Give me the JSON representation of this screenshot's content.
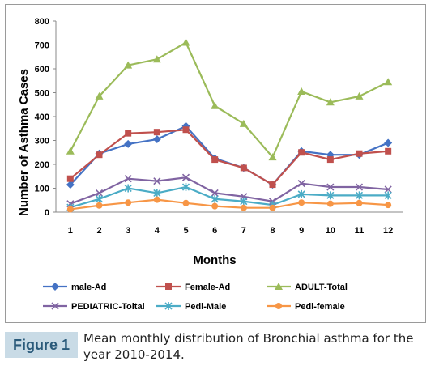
{
  "chart_data": {
    "type": "line",
    "title": "",
    "xlabel": "Months",
    "ylabel": "Number of Asthma Cases",
    "ylim": [
      0,
      800
    ],
    "yticks": [
      0,
      100,
      200,
      300,
      400,
      500,
      600,
      700,
      800
    ],
    "categories": [
      "1",
      "2",
      "3",
      "4",
      "5",
      "6",
      "7",
      "8",
      "9",
      "10",
      "11",
      "12"
    ],
    "grid": false,
    "legend": "bottom",
    "series": [
      {
        "name": "male-Ad",
        "color": "#4472c4",
        "marker": "diamond",
        "values": [
          115,
          245,
          285,
          305,
          360,
          225,
          185,
          115,
          255,
          240,
          240,
          290
        ]
      },
      {
        "name": "Female-Ad",
        "color": "#c0504d",
        "marker": "square",
        "values": [
          140,
          240,
          330,
          335,
          345,
          220,
          185,
          115,
          250,
          220,
          245,
          255
        ]
      },
      {
        "name": "ADULT-Total",
        "color": "#9bbb59",
        "marker": "triangle",
        "values": [
          255,
          485,
          615,
          640,
          710,
          445,
          370,
          230,
          505,
          460,
          485,
          545
        ]
      },
      {
        "name": "PEDIATRIC-Toltal",
        "color": "#8064a2",
        "marker": "x",
        "values": [
          35,
          80,
          140,
          130,
          145,
          80,
          65,
          45,
          120,
          105,
          105,
          95
        ]
      },
      {
        "name": "Pedi-Male",
        "color": "#4bacc6",
        "marker": "star",
        "values": [
          20,
          55,
          100,
          80,
          105,
          55,
          45,
          30,
          75,
          70,
          70,
          70
        ]
      },
      {
        "name": "Pedi-female",
        "color": "#f79646",
        "marker": "circle",
        "values": [
          12,
          28,
          40,
          52,
          38,
          25,
          18,
          18,
          40,
          35,
          38,
          30
        ]
      }
    ]
  },
  "caption": {
    "label": "Figure 1",
    "text": "Mean monthly distribution of Bronchial asthma for the year 2010-2014."
  }
}
